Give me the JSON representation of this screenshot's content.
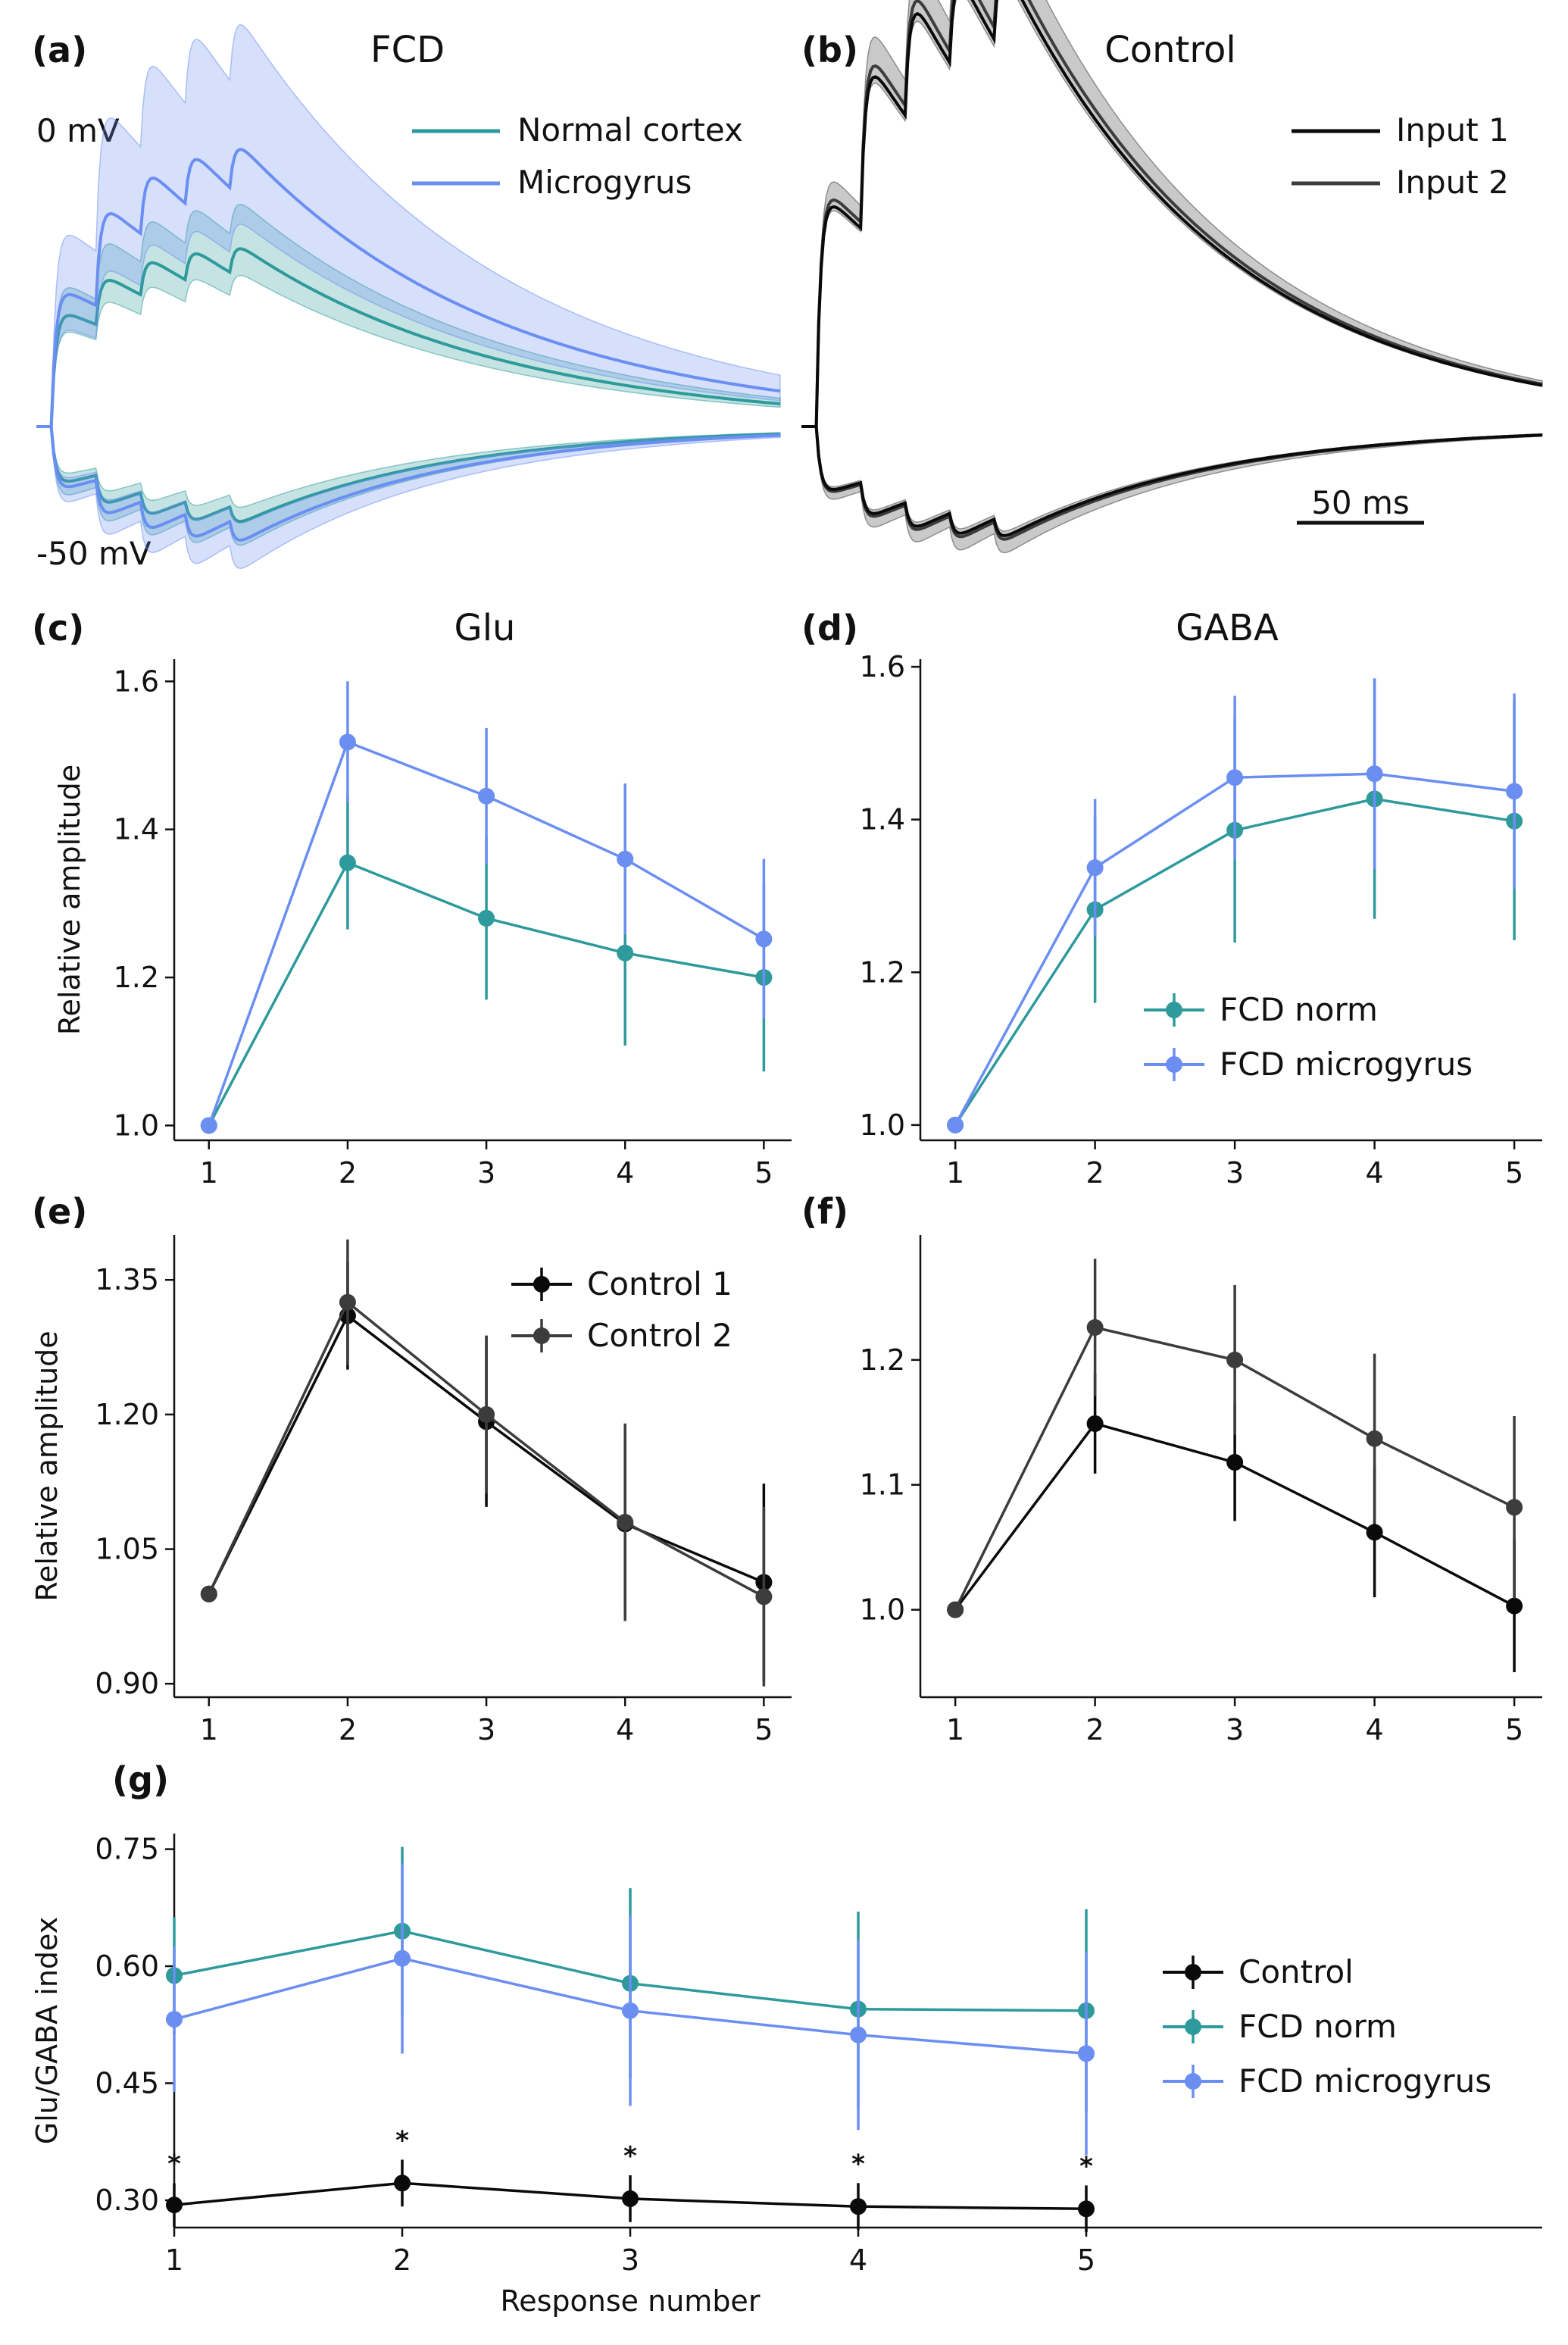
{
  "colors": {
    "teal": "#2e9a9c",
    "blue": "#6b8ef2",
    "black": "#0a0a0a",
    "dark_gray": "#3c3c3c"
  },
  "chart_data": [
    {
      "id": "a",
      "panel": "(a)",
      "type": "line",
      "title": "FCD",
      "voltage_labels": [
        "0 mV",
        "-50 mV"
      ],
      "legend": [
        "Normal cortex",
        "Microgyrus"
      ],
      "series": [
        {
          "name": "Normal cortex",
          "color": "teal",
          "description": "mean trace with SD band, excitatory (up) and inhibitory (down)"
        },
        {
          "name": "Microgyrus",
          "color": "blue",
          "description": "mean trace with SD band, excitatory (up) and inhibitory (down)"
        }
      ]
    },
    {
      "id": "b",
      "panel": "(b)",
      "type": "line",
      "title": "Control",
      "legend": [
        "Input 1",
        "Input 2"
      ],
      "scale_bar": "50 ms",
      "series": [
        {
          "name": "Input 1",
          "color": "black"
        },
        {
          "name": "Input 2",
          "color": "dark_gray"
        }
      ]
    },
    {
      "id": "c",
      "panel": "(c)",
      "type": "line",
      "title": "Glu",
      "ylabel": "Relative amplitude",
      "xlabel": "",
      "x": [
        1,
        2,
        3,
        4,
        5
      ],
      "ylim": [
        0.98,
        1.63
      ],
      "yticks": [
        1.0,
        1.2,
        1.4,
        1.6
      ],
      "ytick_labels": [
        "1.0",
        "1.2",
        "1.4",
        "1.6"
      ],
      "series": [
        {
          "name": "FCD norm",
          "color": "teal",
          "values": [
            1.0,
            1.355,
            1.28,
            1.233,
            1.2
          ],
          "err": [
            0,
            0.09,
            0.11,
            0.125,
            0.127
          ]
        },
        {
          "name": "FCD microgyrus",
          "color": "blue",
          "values": [
            1.0,
            1.518,
            1.445,
            1.36,
            1.252
          ],
          "err": [
            0,
            0.082,
            0.092,
            0.102,
            0.108
          ]
        }
      ]
    },
    {
      "id": "d",
      "panel": "(d)",
      "type": "line",
      "title": "GABA",
      "ylabel": "",
      "x": [
        1,
        2,
        3,
        4,
        5
      ],
      "ylim": [
        0.98,
        1.61
      ],
      "yticks": [
        1.0,
        1.2,
        1.4,
        1.6
      ],
      "ytick_labels": [
        "1.0",
        "1.2",
        "1.4",
        "1.6"
      ],
      "legend": [
        "FCD norm",
        "FCD microgyrus"
      ],
      "legend_position": "bottom-right",
      "series": [
        {
          "name": "FCD norm",
          "color": "teal",
          "values": [
            1.0,
            1.282,
            1.386,
            1.427,
            1.398
          ],
          "err": [
            0,
            0.122,
            0.147,
            0.157,
            0.156
          ]
        },
        {
          "name": "FCD microgyrus",
          "color": "blue",
          "values": [
            1.0,
            1.337,
            1.455,
            1.46,
            1.437
          ],
          "err": [
            0,
            0.09,
            0.107,
            0.125,
            0.128
          ]
        }
      ]
    },
    {
      "id": "e",
      "panel": "(e)",
      "type": "line",
      "ylabel": "Relative amplitude",
      "x": [
        1,
        2,
        3,
        4,
        5
      ],
      "ylim": [
        0.885,
        1.4
      ],
      "yticks": [
        0.9,
        1.05,
        1.2,
        1.35
      ],
      "ytick_labels": [
        "0.90",
        "1.05",
        "1.20",
        "1.35"
      ],
      "legend": [
        "Control 1",
        "Control 2"
      ],
      "legend_position": "top-right",
      "series": [
        {
          "name": "Control 1",
          "color": "black",
          "values": [
            1.0,
            1.31,
            1.192,
            1.078,
            1.013
          ],
          "err": [
            0,
            0.06,
            0.095,
            0.1,
            0.11
          ]
        },
        {
          "name": "Control 2",
          "color": "dark_gray",
          "values": [
            1.0,
            1.325,
            1.2,
            1.08,
            0.997
          ],
          "err": [
            0,
            0.07,
            0.088,
            0.11,
            0.1
          ]
        }
      ]
    },
    {
      "id": "f",
      "panel": "(f)",
      "type": "line",
      "ylabel": "",
      "x": [
        1,
        2,
        3,
        4,
        5
      ],
      "ylim": [
        0.93,
        1.3
      ],
      "yticks": [
        1.0,
        1.1,
        1.2
      ],
      "ytick_labels": [
        "1.0",
        "1.1",
        "1.2"
      ],
      "series": [
        {
          "name": "Control 1",
          "color": "black",
          "values": [
            1.0,
            1.149,
            1.118,
            1.062,
            1.003
          ],
          "err": [
            0,
            0.04,
            0.047,
            0.052,
            0.053
          ]
        },
        {
          "name": "Control 2",
          "color": "dark_gray",
          "values": [
            1.0,
            1.226,
            1.2,
            1.137,
            1.082
          ],
          "err": [
            0,
            0.055,
            0.06,
            0.068,
            0.073
          ]
        }
      ]
    },
    {
      "id": "g",
      "panel": "(g)",
      "type": "line",
      "xlabel": "Response number",
      "ylabel": "Glu/GABA index",
      "x": [
        1,
        2,
        3,
        4,
        5
      ],
      "xlim": [
        1,
        7
      ],
      "ylim": [
        0.265,
        0.77
      ],
      "yticks": [
        0.3,
        0.45,
        0.6,
        0.75
      ],
      "ytick_labels": [
        "0.30",
        "0.45",
        "0.60",
        "0.75"
      ],
      "legend": [
        "Control",
        "FCD norm",
        "FCD microgyrus"
      ],
      "legend_position": "right",
      "significance_marker": "*",
      "series": [
        {
          "name": "Control",
          "color": "black",
          "values": [
            0.294,
            0.322,
            0.302,
            0.292,
            0.289
          ],
          "err": [
            0.028,
            0.03,
            0.03,
            0.03,
            0.03
          ],
          "significant": [
            true,
            true,
            true,
            true,
            true
          ]
        },
        {
          "name": "FCD norm",
          "color": "teal",
          "values": [
            0.588,
            0.645,
            0.578,
            0.545,
            0.543
          ],
          "err": [
            0.075,
            0.108,
            0.122,
            0.125,
            0.13
          ]
        },
        {
          "name": "FCD microgyrus",
          "color": "blue",
          "values": [
            0.532,
            0.61,
            0.543,
            0.512,
            0.488
          ],
          "err": [
            0.093,
            0.122,
            0.122,
            0.122,
            0.13
          ]
        }
      ]
    }
  ]
}
